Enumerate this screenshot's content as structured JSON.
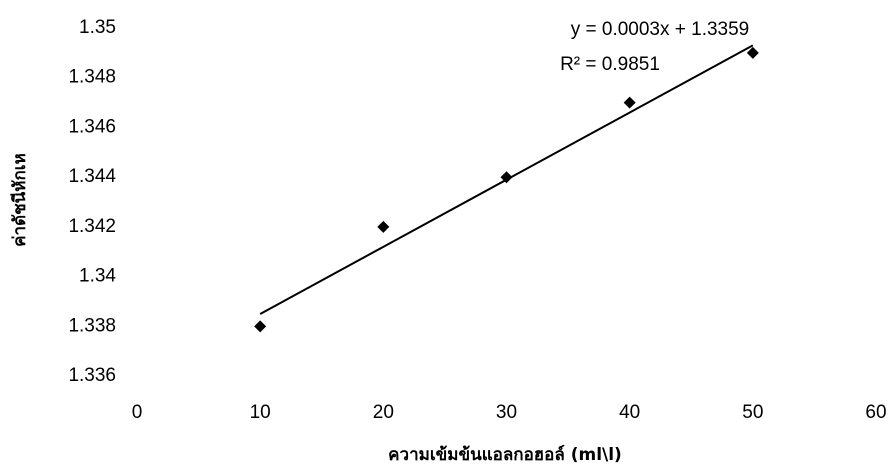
{
  "chart_data": {
    "type": "scatter",
    "x_label": "ความเข้มข้นแอลกอฮอล์ (ml\\l)",
    "y_label": "ค่าดัชนีหักเห",
    "annotations": [
      "y = 0.0003x + 1.3359",
      "R² = 0.9851"
    ],
    "xlim": [
      0,
      60
    ],
    "xticks": [
      0,
      10,
      20,
      30,
      40,
      50,
      60
    ],
    "ylim": [
      1.335,
      1.35
    ],
    "yticks": [
      1.336,
      1.338,
      1.34,
      1.342,
      1.344,
      1.346,
      1.348,
      1.35
    ],
    "series": [
      {
        "color": "#000000",
        "x": [
          10,
          20,
          30,
          40,
          50
        ],
        "values": [
          1.338,
          1.342,
          1.344,
          1.347,
          1.349
        ]
      }
    ],
    "trendline": {
      "color": "#000000",
      "x": [
        10,
        50
      ],
      "values": [
        1.3385,
        1.3493
      ]
    }
  }
}
